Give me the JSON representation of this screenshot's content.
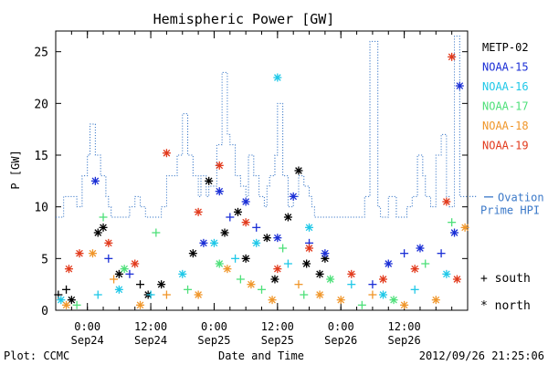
{
  "chart_data": {
    "type": "scatter",
    "title": "Hemispheric Power [GW]",
    "xlabel": "Date and Time",
    "ylabel": "P [GW]",
    "ylim": [
      0,
      27
    ],
    "xlim": [
      "2012-09-23 18:00",
      "2012-09-27 00:00"
    ],
    "grid": false,
    "legend_position": "right",
    "yticks": [
      0,
      5,
      10,
      15,
      20,
      25
    ],
    "xticks": [
      {
        "time": "2012-09-24 00:00",
        "label1": "0:00",
        "label2": "Sep24"
      },
      {
        "time": "2012-09-24 12:00",
        "label1": "12:00",
        "label2": "Sep24"
      },
      {
        "time": "2012-09-25 00:00",
        "label1": "0:00",
        "label2": "Sep25"
      },
      {
        "time": "2012-09-25 12:00",
        "label1": "12:00",
        "label2": "Sep25"
      },
      {
        "time": "2012-09-26 00:00",
        "label1": "0:00",
        "label2": "Sep26"
      },
      {
        "time": "2012-09-26 12:00",
        "label1": "12:00",
        "label2": "Sep26"
      }
    ],
    "legend": [
      {
        "name": "METP-02",
        "color": "#000000"
      },
      {
        "name": "NOAA-15",
        "color": "#1a2ed6"
      },
      {
        "name": "NOAA-16",
        "color": "#1fc8e8"
      },
      {
        "name": "NOAA-17",
        "color": "#4ee07a"
      },
      {
        "name": "NOAA-18",
        "color": "#f0962a"
      },
      {
        "name": "NOAA-19",
        "color": "#e23a1c"
      }
    ],
    "marker_legend": [
      {
        "symbol": "+",
        "label": "south"
      },
      {
        "symbol": "*",
        "label": "north"
      }
    ],
    "ovation": {
      "label_line1": "Ovation",
      "label_line2": "Prime HPI",
      "color": "#3a78c8",
      "steps": [
        [
          "2012-09-23 18:00",
          9
        ],
        [
          "2012-09-23 19:30",
          11
        ],
        [
          "2012-09-23 22:00",
          10
        ],
        [
          "2012-09-23 23:00",
          13
        ],
        [
          "2012-09-24 00:00",
          15
        ],
        [
          "2012-09-24 00:30",
          18
        ],
        [
          "2012-09-24 01:30",
          15
        ],
        [
          "2012-09-24 02:30",
          13
        ],
        [
          "2012-09-24 03:30",
          11
        ],
        [
          "2012-09-24 04:00",
          10
        ],
        [
          "2012-09-24 04:30",
          9
        ],
        [
          "2012-09-24 08:00",
          10
        ],
        [
          "2012-09-24 09:00",
          11
        ],
        [
          "2012-09-24 10:00",
          10
        ],
        [
          "2012-09-24 11:00",
          9
        ],
        [
          "2012-09-24 14:00",
          10
        ],
        [
          "2012-09-24 15:00",
          13
        ],
        [
          "2012-09-24 17:00",
          15
        ],
        [
          "2012-09-24 18:00",
          19
        ],
        [
          "2012-09-24 19:00",
          15
        ],
        [
          "2012-09-24 20:00",
          13
        ],
        [
          "2012-09-24 21:00",
          11
        ],
        [
          "2012-09-24 21:30",
          13
        ],
        [
          "2012-09-24 22:30",
          11
        ],
        [
          "2012-09-24 23:00",
          12
        ],
        [
          "2012-09-25 00:30",
          16
        ],
        [
          "2012-09-25 01:30",
          23
        ],
        [
          "2012-09-25 02:30",
          17
        ],
        [
          "2012-09-25 03:00",
          16
        ],
        [
          "2012-09-25 04:00",
          13
        ],
        [
          "2012-09-25 05:00",
          12
        ],
        [
          "2012-09-25 06:00",
          11
        ],
        [
          "2012-09-25 06:30",
          15
        ],
        [
          "2012-09-25 07:30",
          13
        ],
        [
          "2012-09-25 08:30",
          11
        ],
        [
          "2012-09-25 09:30",
          10
        ],
        [
          "2012-09-25 10:00",
          12
        ],
        [
          "2012-09-25 10:30",
          13
        ],
        [
          "2012-09-25 11:30",
          15
        ],
        [
          "2012-09-25 12:00",
          20
        ],
        [
          "2012-09-25 13:00",
          13
        ],
        [
          "2012-09-25 14:00",
          10
        ],
        [
          "2012-09-25 15:00",
          11
        ],
        [
          "2012-09-25 16:00",
          13
        ],
        [
          "2012-09-25 17:00",
          12
        ],
        [
          "2012-09-25 18:00",
          11
        ],
        [
          "2012-09-25 18:30",
          10
        ],
        [
          "2012-09-25 19:00",
          9
        ],
        [
          "2012-09-26 04:30",
          11
        ],
        [
          "2012-09-26 05:30",
          26
        ],
        [
          "2012-09-26 07:00",
          10
        ],
        [
          "2012-09-26 07:30",
          9
        ],
        [
          "2012-09-26 09:00",
          11
        ],
        [
          "2012-09-26 10:30",
          9
        ],
        [
          "2012-09-26 12:30",
          10
        ],
        [
          "2012-09-26 13:30",
          11
        ],
        [
          "2012-09-26 14:30",
          15
        ],
        [
          "2012-09-26 15:30",
          13
        ],
        [
          "2012-09-26 16:00",
          11
        ],
        [
          "2012-09-26 17:00",
          10
        ],
        [
          "2012-09-26 18:00",
          15
        ],
        [
          "2012-09-26 19:00",
          17
        ],
        [
          "2012-09-26 20:00",
          11
        ],
        [
          "2012-09-26 20:30",
          10
        ],
        [
          "2012-09-26 21:30",
          26.5
        ],
        [
          "2012-09-26 22:30",
          11
        ],
        [
          "2012-09-27 00:00",
          11
        ]
      ]
    },
    "series": [
      {
        "name": "METP-02",
        "color": "#000000",
        "points": [
          [
            "2012-09-23 18:30",
            1.5,
            "+"
          ],
          [
            "2012-09-23 20:00",
            2.0,
            "+"
          ],
          [
            "2012-09-23 21:00",
            1.0,
            "*"
          ],
          [
            "2012-09-24 02:00",
            7.5,
            "*"
          ],
          [
            "2012-09-24 03:00",
            8.0,
            "*"
          ],
          [
            "2012-09-24 06:00",
            3.5,
            "*"
          ],
          [
            "2012-09-24 10:00",
            2.5,
            "+"
          ],
          [
            "2012-09-24 11:30",
            1.5,
            "*"
          ],
          [
            "2012-09-24 14:00",
            2.5,
            "*"
          ],
          [
            "2012-09-24 20:00",
            5.5,
            "*"
          ],
          [
            "2012-09-24 23:00",
            12.5,
            "*"
          ],
          [
            "2012-09-25 02:00",
            7.5,
            "*"
          ],
          [
            "2012-09-25 04:30",
            9.5,
            "*"
          ],
          [
            "2012-09-25 06:00",
            5.0,
            "*"
          ],
          [
            "2012-09-25 10:00",
            7.0,
            "*"
          ],
          [
            "2012-09-25 11:30",
            3.0,
            "*"
          ],
          [
            "2012-09-25 14:00",
            9.0,
            "*"
          ],
          [
            "2012-09-25 16:00",
            13.5,
            "*"
          ],
          [
            "2012-09-25 17:30",
            4.5,
            "*"
          ],
          [
            "2012-09-25 20:00",
            3.5,
            "*"
          ],
          [
            "2012-09-25 21:00",
            5.0,
            "*"
          ]
        ]
      },
      {
        "name": "NOAA-15",
        "color": "#1a2ed6",
        "points": [
          [
            "2012-09-24 01:30",
            12.5,
            "*"
          ],
          [
            "2012-09-24 04:00",
            5.0,
            "+"
          ],
          [
            "2012-09-24 08:00",
            3.5,
            "+"
          ],
          [
            "2012-09-24 22:00",
            6.5,
            "*"
          ],
          [
            "2012-09-25 01:00",
            11.5,
            "*"
          ],
          [
            "2012-09-25 03:00",
            9.0,
            "+"
          ],
          [
            "2012-09-25 06:00",
            10.5,
            "*"
          ],
          [
            "2012-09-25 08:00",
            8.0,
            "+"
          ],
          [
            "2012-09-25 12:00",
            7.0,
            "*"
          ],
          [
            "2012-09-25 15:00",
            11.0,
            "*"
          ],
          [
            "2012-09-25 18:00",
            6.5,
            "+"
          ],
          [
            "2012-09-25 21:00",
            5.5,
            "*"
          ],
          [
            "2012-09-26 06:00",
            2.5,
            "+"
          ],
          [
            "2012-09-26 09:00",
            4.5,
            "*"
          ],
          [
            "2012-09-26 12:00",
            5.5,
            "+"
          ],
          [
            "2012-09-26 15:00",
            6.0,
            "*"
          ],
          [
            "2012-09-26 19:00",
            5.5,
            "+"
          ],
          [
            "2012-09-26 21:30",
            7.5,
            "*"
          ],
          [
            "2012-09-26 22:30",
            21.7,
            "*"
          ]
        ]
      },
      {
        "name": "NOAA-16",
        "color": "#1fc8e8",
        "points": [
          [
            "2012-09-23 19:00",
            1.0,
            "*"
          ],
          [
            "2012-09-24 02:00",
            1.5,
            "+"
          ],
          [
            "2012-09-24 06:00",
            2.0,
            "*"
          ],
          [
            "2012-09-24 12:00",
            1.5,
            "+"
          ],
          [
            "2012-09-24 18:00",
            3.5,
            "*"
          ],
          [
            "2012-09-25 00:00",
            6.5,
            "*"
          ],
          [
            "2012-09-25 04:00",
            5.0,
            "+"
          ],
          [
            "2012-09-25 08:00",
            6.5,
            "*"
          ],
          [
            "2012-09-25 12:00",
            22.5,
            "*"
          ],
          [
            "2012-09-25 14:00",
            4.5,
            "+"
          ],
          [
            "2012-09-25 18:00",
            8.0,
            "*"
          ],
          [
            "2012-09-26 02:00",
            2.5,
            "+"
          ],
          [
            "2012-09-26 08:00",
            1.5,
            "*"
          ],
          [
            "2012-09-26 14:00",
            2.0,
            "+"
          ],
          [
            "2012-09-26 20:00",
            3.5,
            "*"
          ]
        ]
      },
      {
        "name": "NOAA-17",
        "color": "#4ee07a",
        "points": [
          [
            "2012-09-23 22:00",
            0.5,
            "+"
          ],
          [
            "2012-09-24 03:00",
            9.0,
            "+"
          ],
          [
            "2012-09-24 07:00",
            4.0,
            "*"
          ],
          [
            "2012-09-24 13:00",
            7.5,
            "+"
          ],
          [
            "2012-09-24 19:00",
            2.0,
            "+"
          ],
          [
            "2012-09-25 01:00",
            4.5,
            "*"
          ],
          [
            "2012-09-25 05:00",
            3.0,
            "+"
          ],
          [
            "2012-09-25 09:00",
            2.0,
            "+"
          ],
          [
            "2012-09-25 13:00",
            6.0,
            "+"
          ],
          [
            "2012-09-25 17:00",
            1.5,
            "+"
          ],
          [
            "2012-09-25 22:00",
            3.0,
            "*"
          ],
          [
            "2012-09-26 04:00",
            0.5,
            "+"
          ],
          [
            "2012-09-26 10:00",
            1.0,
            "*"
          ],
          [
            "2012-09-26 16:00",
            4.5,
            "+"
          ],
          [
            "2012-09-26 21:00",
            8.5,
            "+"
          ]
        ]
      },
      {
        "name": "NOAA-18",
        "color": "#f0962a",
        "points": [
          [
            "2012-09-23 20:00",
            0.5,
            "*"
          ],
          [
            "2012-09-24 01:00",
            5.5,
            "*"
          ],
          [
            "2012-09-24 05:00",
            3.0,
            "+"
          ],
          [
            "2012-09-24 10:00",
            0.5,
            "*"
          ],
          [
            "2012-09-24 15:00",
            1.5,
            "+"
          ],
          [
            "2012-09-24 21:00",
            1.5,
            "*"
          ],
          [
            "2012-09-25 02:30",
            4.0,
            "*"
          ],
          [
            "2012-09-25 07:00",
            2.5,
            "*"
          ],
          [
            "2012-09-25 11:00",
            1.0,
            "*"
          ],
          [
            "2012-09-25 16:00",
            2.5,
            "+"
          ],
          [
            "2012-09-25 20:00",
            1.5,
            "*"
          ],
          [
            "2012-09-26 00:00",
            1.0,
            "*"
          ],
          [
            "2012-09-26 06:00",
            1.5,
            "+"
          ],
          [
            "2012-09-26 12:00",
            0.5,
            "*"
          ],
          [
            "2012-09-26 18:00",
            1.0,
            "*"
          ],
          [
            "2012-09-26 23:30",
            8.0,
            "*"
          ]
        ]
      },
      {
        "name": "NOAA-19",
        "color": "#e23a1c",
        "points": [
          [
            "2012-09-23 20:30",
            4.0,
            "*"
          ],
          [
            "2012-09-23 22:30",
            5.5,
            "*"
          ],
          [
            "2012-09-24 04:00",
            6.5,
            "*"
          ],
          [
            "2012-09-24 09:00",
            4.5,
            "*"
          ],
          [
            "2012-09-24 15:00",
            15.2,
            "*"
          ],
          [
            "2012-09-24 21:00",
            9.5,
            "*"
          ],
          [
            "2012-09-25 01:00",
            14.0,
            "*"
          ],
          [
            "2012-09-25 06:00",
            8.5,
            "*"
          ],
          [
            "2012-09-25 12:00",
            4.0,
            "*"
          ],
          [
            "2012-09-25 18:00",
            6.0,
            "*"
          ],
          [
            "2012-09-26 02:00",
            3.5,
            "*"
          ],
          [
            "2012-09-26 08:00",
            3.0,
            "*"
          ],
          [
            "2012-09-26 14:00",
            4.0,
            "*"
          ],
          [
            "2012-09-26 20:00",
            10.5,
            "*"
          ],
          [
            "2012-09-26 21:00",
            24.5,
            "*"
          ],
          [
            "2012-09-26 22:00",
            3.0,
            "*"
          ]
        ]
      }
    ]
  },
  "footer": {
    "left": "Plot: CCMC",
    "center": "Date and Time",
    "right": "2012/09/26 21:25:06"
  }
}
